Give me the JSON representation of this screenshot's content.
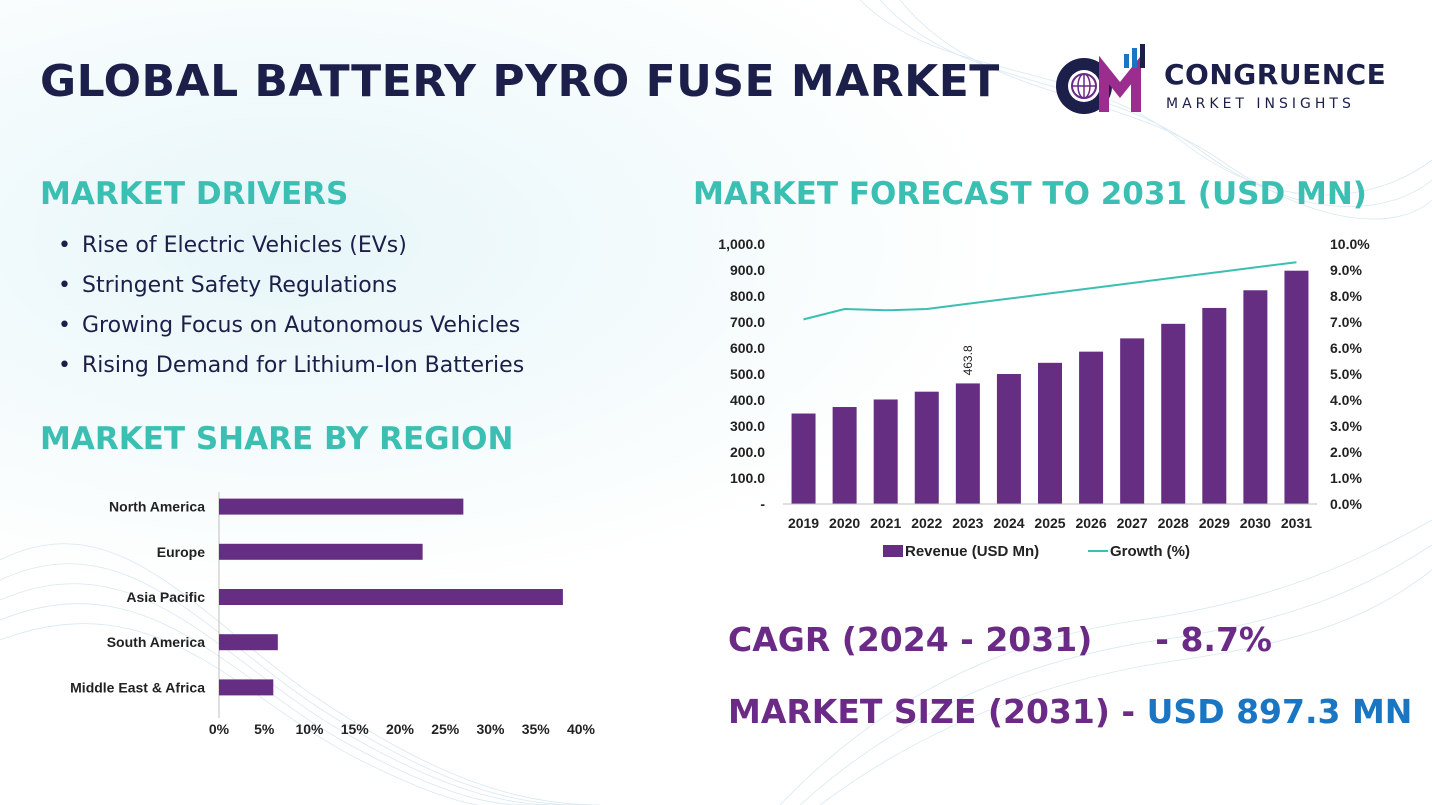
{
  "header": {
    "title": "GLOBAL BATTERY PYRO FUSE MARKET"
  },
  "logo": {
    "name": "CONGRUENCE",
    "subtitle": "MARKET INSIGHTS"
  },
  "drivers": {
    "title": "MARKET DRIVERS",
    "items": [
      "Rise of Electric Vehicles (EVs)",
      "Stringent Safety Regulations",
      "Growing Focus on Autonomous Vehicles",
      "Rising Demand for Lithium-Ion Batteries"
    ]
  },
  "region": {
    "title": "MARKET SHARE BY REGION"
  },
  "forecast": {
    "title": "MARKET FORECAST TO 2031 (USD MN)"
  },
  "stats": {
    "cagr_label": "CAGR (2024 - 2031)",
    "cagr_value": "- 8.7%",
    "size_label": "MARKET SIZE (2031)",
    "size_sep": "-",
    "size_value": "USD  897.3 MN"
  },
  "colors": {
    "navy": "#1c1f4a",
    "teal": "#3bbfb3",
    "bar_purple": "#652e83",
    "line_teal": "#3bbfb3",
    "stat_purple": "#6a2a86",
    "stat_blue": "#1a75c2"
  },
  "chart_data": [
    {
      "type": "bar",
      "orientation": "horizontal",
      "categories": [
        "North America",
        "Europe",
        "Asia Pacific",
        "South America",
        "Middle East & Africa"
      ],
      "values": [
        27,
        22.5,
        38,
        6.5,
        6
      ],
      "xlim": [
        0,
        40
      ],
      "xticks": [
        "0%",
        "5%",
        "10%",
        "15%",
        "20%",
        "25%",
        "30%",
        "35%",
        "40%"
      ],
      "unit": "%",
      "grid": false
    },
    {
      "type": "bar+line",
      "categories": [
        "2019",
        "2020",
        "2021",
        "2022",
        "2023",
        "2024",
        "2025",
        "2026",
        "2027",
        "2028",
        "2029",
        "2030",
        "2031"
      ],
      "series": [
        {
          "name": "Revenue (USD Mn)",
          "type": "bar",
          "axis": "left",
          "values": [
            348,
            373,
            402,
            432,
            463.8,
            500,
            543,
            586,
            637,
            693,
            754,
            822,
            897.3
          ]
        },
        {
          "name": "Growth (%)",
          "type": "line",
          "axis": "right",
          "values": [
            7.1,
            7.5,
            7.45,
            7.5,
            7.7,
            7.9,
            8.1,
            8.3,
            8.5,
            8.7,
            8.9,
            9.1,
            9.3
          ]
        }
      ],
      "data_labels": [
        {
          "index": 4,
          "text": "463.8"
        }
      ],
      "ylim_left": [
        0,
        1000
      ],
      "yticks_left": [
        "-",
        "100.0",
        "200.0",
        "300.0",
        "400.0",
        "500.0",
        "600.0",
        "700.0",
        "800.0",
        "900.0",
        "1,000.0"
      ],
      "ylim_right": [
        0,
        10
      ],
      "yticks_right": [
        "0.0%",
        "1.0%",
        "2.0%",
        "3.0%",
        "4.0%",
        "5.0%",
        "6.0%",
        "7.0%",
        "8.0%",
        "9.0%",
        "10.0%"
      ],
      "legend": "bottom",
      "grid": false
    }
  ]
}
